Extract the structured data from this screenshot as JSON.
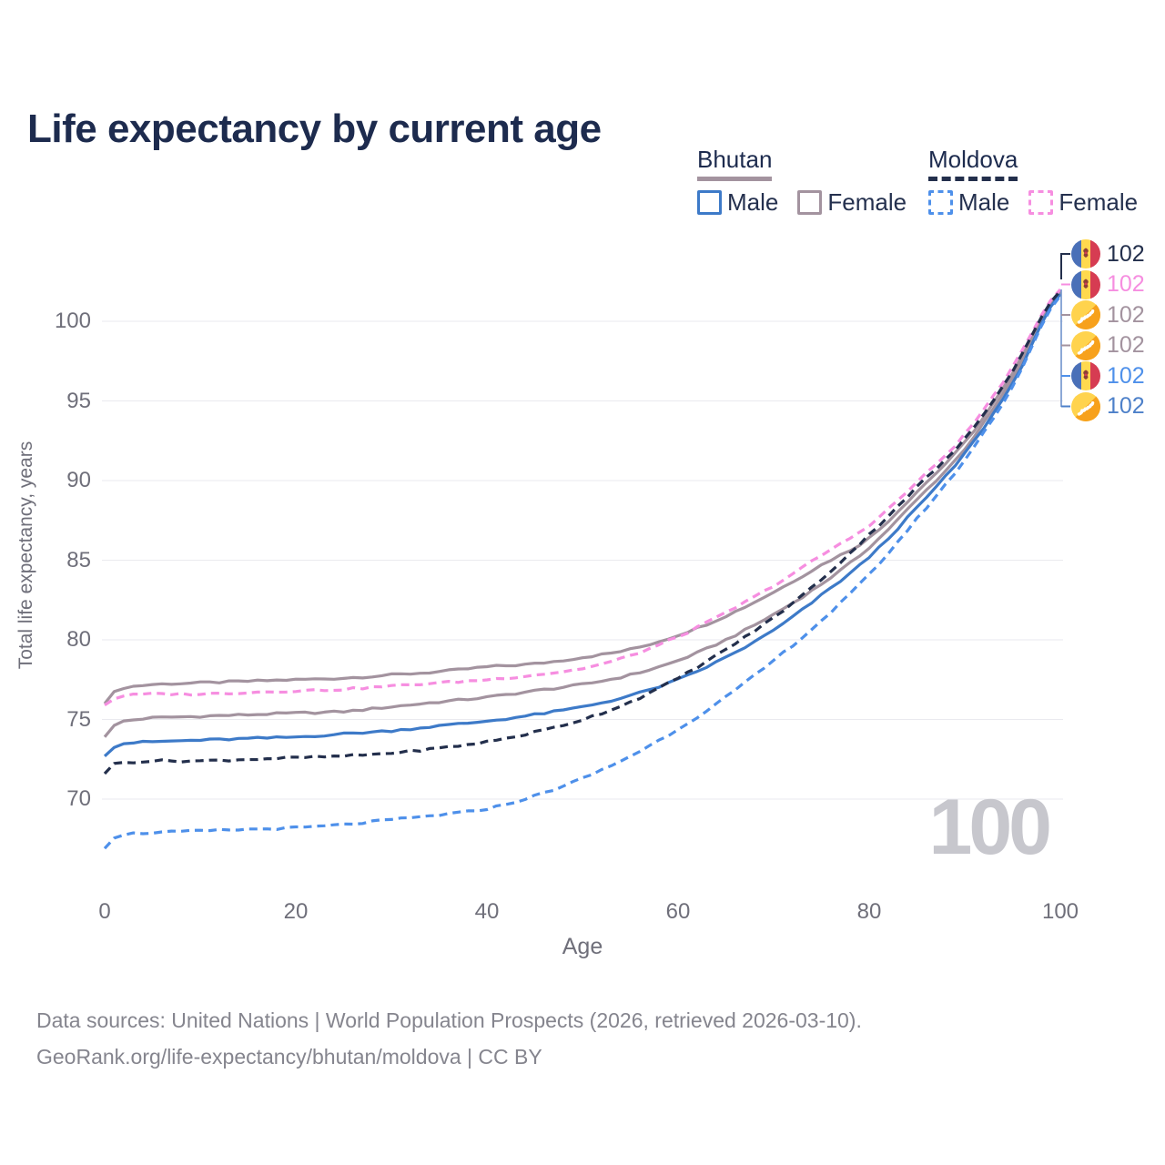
{
  "title": "Life expectancy by current age",
  "legend": {
    "groups": [
      {
        "country": "Bhutan",
        "items": [
          {
            "label": "Male"
          },
          {
            "label": "Female"
          }
        ]
      },
      {
        "country": "Moldova",
        "items": [
          {
            "label": "Male"
          },
          {
            "label": "Female"
          }
        ]
      }
    ]
  },
  "y_axis": {
    "title": "Total life expectancy, years",
    "ticks": [
      100,
      95,
      90,
      85,
      80,
      75,
      70
    ]
  },
  "x_axis": {
    "title": "Age",
    "ticks": [
      0,
      20,
      40,
      60,
      80,
      100
    ]
  },
  "watermark": "100",
  "end_labels": [
    {
      "value": "102",
      "flag": "moldova",
      "series": "Moldova Both sexes",
      "color": "#232f4c"
    },
    {
      "value": "102",
      "flag": "moldova",
      "series": "Moldova Female",
      "color": "#f68ee0"
    },
    {
      "value": "102",
      "flag": "bhutan",
      "series": "Bhutan Female",
      "color": "#a3939f"
    },
    {
      "value": "102",
      "flag": "bhutan",
      "series": "Bhutan Both sexes",
      "color": "#a3939f"
    },
    {
      "value": "102",
      "flag": "moldova",
      "series": "Moldova Male",
      "color": "#4e90ea"
    },
    {
      "value": "102",
      "flag": "bhutan",
      "series": "Bhutan Male",
      "color": "#4d80c9"
    }
  ],
  "footer": {
    "line1": "Data sources: United Nations | World Population Prospects (2026, retrieved 2026-03-10).",
    "line2": "GeoRank.org/life-expectancy/bhutan/moldova | CC BY"
  },
  "colors": {
    "title_text": "#1d2b4e",
    "bhutan_male": "#3d7ac8",
    "bhutan_female": "#a3939f",
    "bhutan_both": "#a3939f",
    "moldova_male": "#4e90ea",
    "moldova_female": "#f68ee0",
    "moldova_both": "#232f4c",
    "gridline": "#eaeaef",
    "tick_text": "#6f6f7a",
    "footer_text": "#85858e",
    "watermark_text": "#c7c7cd",
    "leader_top": "#232f4c",
    "leader_bottom": "#6f92cc",
    "flag_moldova_blue": "#4a70b8",
    "flag_moldova_yellow": "#ffd94e",
    "flag_moldova_red": "#d63c52",
    "flag_moldova_emblem": "#8d4136",
    "flag_bhutan_yellow": "#ffd34d",
    "flag_bhutan_orange": "#f7a11c",
    "flag_bhutan_dragon": "#ffffff"
  },
  "chart_data": {
    "type": "line",
    "title": "Life expectancy by current age",
    "xlabel": "Age",
    "ylabel": "Total life expectancy, years",
    "xlim": [
      0,
      100
    ],
    "ylim": [
      66,
      103
    ],
    "grid": "horizontal",
    "legend_position": "top-right",
    "x": [
      0,
      1,
      2,
      5,
      10,
      15,
      20,
      25,
      30,
      35,
      40,
      45,
      50,
      55,
      60,
      65,
      70,
      75,
      80,
      85,
      90,
      95,
      100
    ],
    "series": [
      {
        "name": "Bhutan Female",
        "country": "Bhutan",
        "sex": "Female",
        "style": "solid",
        "color": "#a3939f",
        "end_label": 102,
        "values": [
          76.0,
          76.7,
          77.0,
          77.2,
          77.3,
          77.4,
          77.5,
          77.6,
          77.8,
          78.0,
          78.3,
          78.5,
          78.9,
          79.4,
          80.3,
          81.5,
          83.0,
          84.7,
          86.4,
          89.3,
          92.4,
          96.7,
          101.9
        ]
      },
      {
        "name": "Bhutan Both sexes",
        "country": "Bhutan",
        "sex": "Both",
        "style": "solid",
        "color": "#a3939f",
        "end_label": 102,
        "values": [
          73.9,
          74.6,
          74.9,
          75.1,
          75.2,
          75.3,
          75.4,
          75.5,
          75.8,
          76.1,
          76.4,
          76.8,
          77.2,
          77.8,
          78.7,
          80.0,
          81.6,
          83.5,
          85.8,
          88.8,
          92.0,
          96.4,
          101.8
        ]
      },
      {
        "name": "Bhutan Male",
        "country": "Bhutan",
        "sex": "Male",
        "style": "solid",
        "color": "#3d7ac8",
        "end_label": 102,
        "values": [
          72.7,
          73.3,
          73.5,
          73.6,
          73.7,
          73.8,
          73.9,
          74.1,
          74.3,
          74.6,
          74.9,
          75.3,
          75.8,
          76.5,
          77.5,
          78.9,
          80.6,
          82.8,
          85.2,
          88.3,
          91.7,
          96.1,
          101.7
        ]
      },
      {
        "name": "Moldova Female",
        "country": "Moldova",
        "sex": "Female",
        "style": "dashed",
        "color": "#f68ee0",
        "end_label": 102,
        "values": [
          75.9,
          76.3,
          76.5,
          76.6,
          76.6,
          76.7,
          76.8,
          76.9,
          77.1,
          77.3,
          77.5,
          77.8,
          78.2,
          79.0,
          80.2,
          81.7,
          83.4,
          85.3,
          87.2,
          89.9,
          92.9,
          97.1,
          102.0
        ]
      },
      {
        "name": "Moldova Both sexes",
        "country": "Moldova",
        "sex": "Both",
        "style": "dashed",
        "color": "#232f4c",
        "end_label": 102,
        "values": [
          71.6,
          72.2,
          72.3,
          72.4,
          72.4,
          72.5,
          72.6,
          72.7,
          72.9,
          73.2,
          73.6,
          74.2,
          75.0,
          76.1,
          77.6,
          79.4,
          81.4,
          83.8,
          86.6,
          89.6,
          92.6,
          96.9,
          101.9
        ]
      },
      {
        "name": "Moldova Male",
        "country": "Moldova",
        "sex": "Male",
        "style": "dashed",
        "color": "#4e90ea",
        "end_label": 102,
        "values": [
          66.9,
          67.6,
          67.8,
          67.9,
          68.0,
          68.1,
          68.2,
          68.4,
          68.7,
          69.0,
          69.4,
          70.2,
          71.3,
          72.7,
          74.4,
          76.4,
          78.7,
          81.2,
          84.1,
          87.6,
          91.3,
          95.9,
          101.6
        ]
      }
    ]
  }
}
